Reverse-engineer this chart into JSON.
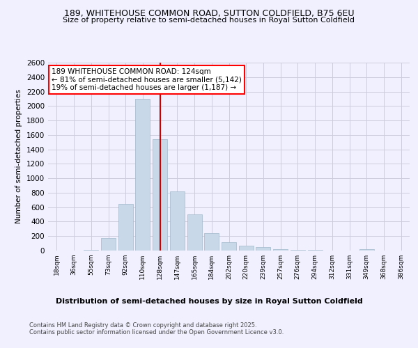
{
  "title": "189, WHITEHOUSE COMMON ROAD, SUTTON COLDFIELD, B75 6EU",
  "subtitle": "Size of property relative to semi-detached houses in Royal Sutton Coldfield",
  "xlabel": "Distribution of semi-detached houses by size in Royal Sutton Coldfield",
  "ylabel": "Number of semi-detached properties",
  "categories": [
    "18sqm",
    "36sqm",
    "55sqm",
    "73sqm",
    "92sqm",
    "110sqm",
    "128sqm",
    "147sqm",
    "165sqm",
    "184sqm",
    "202sqm",
    "220sqm",
    "239sqm",
    "257sqm",
    "276sqm",
    "294sqm",
    "312sqm",
    "331sqm",
    "349sqm",
    "368sqm",
    "386sqm"
  ],
  "values": [
    0,
    2,
    5,
    170,
    650,
    2100,
    1540,
    820,
    500,
    245,
    120,
    65,
    45,
    15,
    8,
    5,
    2,
    0,
    20,
    2,
    0
  ],
  "bar_color": "#c8d8e8",
  "bar_edgecolor": "#a0b8cc",
  "highlight_index": 6,
  "highlight_color": "#cc0000",
  "ylim": [
    0,
    2600
  ],
  "yticks": [
    0,
    200,
    400,
    600,
    800,
    1000,
    1200,
    1400,
    1600,
    1800,
    2000,
    2200,
    2400,
    2600
  ],
  "annotation_title": "189 WHITEHOUSE COMMON ROAD: 124sqm",
  "annotation_line1": "← 81% of semi-detached houses are smaller (5,142)",
  "annotation_line2": "19% of semi-detached houses are larger (1,187) →",
  "footer1": "Contains HM Land Registry data © Crown copyright and database right 2025.",
  "footer2": "Contains public sector information licensed under the Open Government Licence v3.0.",
  "bg_color": "#f0f0ff",
  "grid_color": "#ccccdd"
}
